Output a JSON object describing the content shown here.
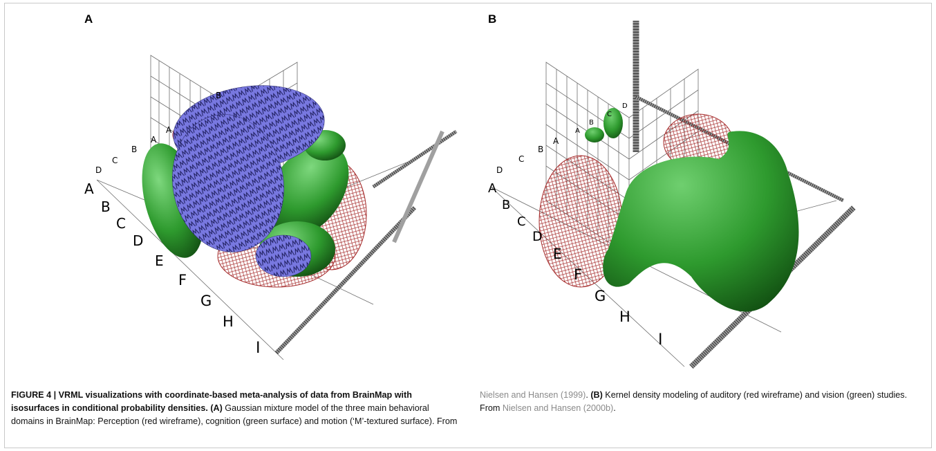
{
  "figure": {
    "panel_a": {
      "letter": "A"
    },
    "panel_b": {
      "letter": "B"
    },
    "axis_labels_a_small": [
      "D",
      "C",
      "B",
      "A",
      "A",
      "B"
    ],
    "axis_labels_a_large": [
      "A",
      "B",
      "C",
      "D",
      "E",
      "F",
      "G",
      "H",
      "I"
    ],
    "axis_labels_b_small": [
      "D",
      "C",
      "B",
      "A",
      "A",
      "B",
      "C",
      "D"
    ],
    "axis_labels_b_large": [
      "A",
      "B",
      "C",
      "D",
      "E",
      "F",
      "G",
      "H",
      "I"
    ],
    "colors": {
      "wireframe": "#a52a2a",
      "green_surface": "#2e9a2e",
      "blue_surface": "#6a6ad8"
    }
  },
  "caption": {
    "figure_label": "FIGURE 4 | VRML visualizations with coordinate-based meta-analysis of data from BrainMap with isosurfaces in conditional probability densities.",
    "a_label": "(A)",
    "a_text": " Gaussian mixture model of the three main behavioral domains in BrainMap: Perception (red wireframe), cognition (green surface) and motion (‘M’-textured surface). From ",
    "ref1": "Nielsen and Hansen (1999)",
    "after_ref1": ". ",
    "b_label": "(B)",
    "b_text": " Kernel density modeling of auditory (red wireframe) and vision (green) studies. From ",
    "ref2": "Nielsen and Hansen (2000b)",
    "end": "."
  }
}
